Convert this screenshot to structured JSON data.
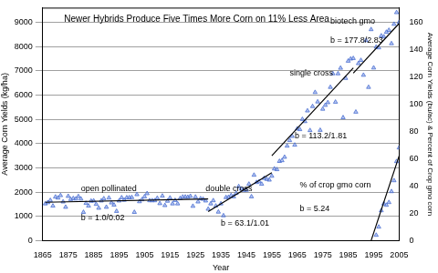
{
  "chart_data": {
    "type": "scatter",
    "title": "Newer Hybrids Produce Five Times More Corn on 11% Less Area",
    "x_label": "Year",
    "y_label": "Average Corn Yields (kg/ha)",
    "y2_label": "Average Corn Yields (bu/ac) & Percent of Crop gmo corn",
    "xlim": [
      1865,
      2005
    ],
    "xticks": [
      1865,
      1875,
      1885,
      1895,
      1905,
      1915,
      1925,
      1935,
      1945,
      1955,
      1965,
      1975,
      1985,
      1995,
      2005
    ],
    "ylim": [
      0,
      9600
    ],
    "yticks": [
      0,
      1000,
      2000,
      3000,
      4000,
      5000,
      6000,
      7000,
      8000,
      9000
    ],
    "y2lim": [
      0,
      170.7
    ],
    "y2ticks": [
      0,
      20,
      40,
      60,
      80,
      100,
      120,
      140,
      160
    ],
    "grid": true,
    "series": [
      {
        "type": "scatter",
        "marker": "triangle",
        "color": "#4a6fd0",
        "x": [
          1866,
          1867,
          1868,
          1869,
          1870,
          1871,
          1872,
          1873,
          1874,
          1875,
          1876,
          1877,
          1878,
          1879,
          1880,
          1881,
          1882,
          1883,
          1884,
          1885,
          1886,
          1887,
          1888,
          1889,
          1890,
          1891,
          1892,
          1893,
          1894,
          1895,
          1896,
          1897,
          1898,
          1899,
          1900,
          1901,
          1902,
          1903,
          1904,
          1905,
          1906,
          1907,
          1908,
          1909,
          1910,
          1911,
          1912,
          1913,
          1914,
          1915,
          1916,
          1917,
          1918,
          1919,
          1920,
          1921,
          1922,
          1923,
          1924,
          1925,
          1926,
          1927,
          1928,
          1929,
          1930,
          1931,
          1932,
          1933,
          1934,
          1935,
          1936,
          1937,
          1938,
          1939,
          1940,
          1941,
          1942,
          1943,
          1944,
          1945,
          1946,
          1947,
          1948,
          1949,
          1950,
          1951,
          1952,
          1953,
          1954,
          1955,
          1956,
          1957,
          1958,
          1959,
          1960,
          1961,
          1962,
          1963,
          1964,
          1965,
          1966,
          1967,
          1968,
          1969,
          1970,
          1971,
          1972,
          1973,
          1974,
          1975,
          1976,
          1977,
          1978,
          1979,
          1980,
          1981,
          1982,
          1983,
          1984,
          1985,
          1986,
          1987,
          1988,
          1989,
          1990,
          1991,
          1992,
          1993,
          1994,
          1995,
          1996,
          1997,
          1998,
          1999,
          2000,
          2001,
          2002,
          2003,
          2004,
          2005
        ],
        "values": [
          1520,
          1570,
          1660,
          1430,
          1800,
          1760,
          1860,
          1600,
          1380,
          1830,
          1700,
          1740,
          1720,
          1820,
          1720,
          1170,
          1540,
          1430,
          1630,
          1640,
          1500,
          1340,
          1640,
          1730,
          1380,
          1760,
          1560,
          1470,
          1210,
          1640,
          1770,
          1670,
          1770,
          1770,
          1780,
          1170,
          1900,
          1610,
          1690,
          1810,
          1940,
          1650,
          1650,
          1650,
          1750,
          1530,
          1840,
          1450,
          1630,
          1760,
          1520,
          1660,
          1520,
          1740,
          1800,
          1800,
          1790,
          1830,
          1420,
          1800,
          1600,
          1730,
          1710,
          1640,
          1300,
          1520,
          1650,
          1430,
          1180,
          1520,
          1030,
          1780,
          1790,
          1860,
          1810,
          1950,
          2230,
          2130,
          2080,
          2080,
          2330,
          1810,
          2700,
          2400,
          2430,
          2330,
          2570,
          2530,
          2500,
          2660,
          2960,
          2930,
          3270,
          3300,
          3440,
          3900,
          4130,
          4300,
          3940,
          4610,
          4580,
          5000,
          4910,
          5350,
          4540,
          5530,
          6110,
          5720,
          4550,
          5420,
          5580,
          5690,
          6320,
          6880,
          5710,
          6880,
          7110,
          5070,
          6690,
          7400,
          7490,
          7510,
          5300,
          7300,
          7430,
          6820,
          8250,
          6320,
          8700,
          7120,
          7980,
          7950,
          8440,
          8400,
          8590,
          8670,
          8120,
          8920,
          9400,
          9000
        ]
      },
      {
        "type": "scatter",
        "marker": "triangle",
        "color": "#4a6fd0",
        "axis": "y2",
        "x": [
          1996,
          1997,
          1998,
          1999,
          2000,
          2001,
          2002,
          2003,
          2004,
          2005
        ],
        "values": [
          4,
          10,
          22,
          27,
          26,
          28,
          36,
          44,
          58,
          68
        ]
      },
      {
        "type": "line",
        "color": "#000000",
        "x": [
          1866,
          1930
        ],
        "values": [
          1580,
          1720
        ]
      },
      {
        "type": "line",
        "color": "#000000",
        "x": [
          1930,
          1955
        ],
        "values": [
          1200,
          2800
        ]
      },
      {
        "type": "line",
        "color": "#000000",
        "x": [
          1955,
          1987
        ],
        "values": [
          3500,
          7120
        ]
      },
      {
        "type": "line",
        "color": "#000000",
        "x": [
          1987,
          2005
        ],
        "values": [
          6900,
          8950
        ]
      },
      {
        "type": "line",
        "color": "#000000",
        "axis": "y2",
        "x": [
          1994,
          2005
        ],
        "values": [
          0,
          62
        ]
      }
    ],
    "annotations": [
      {
        "text": "open pollinated"
      },
      {
        "text": "b = 1.0/0.02"
      },
      {
        "text": "double cross"
      },
      {
        "text": "b = 63.1/1.01"
      },
      {
        "text": "single cross"
      },
      {
        "text": "b = 113.2/1.81"
      },
      {
        "text": "biotech gmo"
      },
      {
        "text": "b = 177.8/2.83"
      },
      {
        "text": "% of crop gmo corn"
      },
      {
        "text": "b = 5.24"
      }
    ]
  }
}
